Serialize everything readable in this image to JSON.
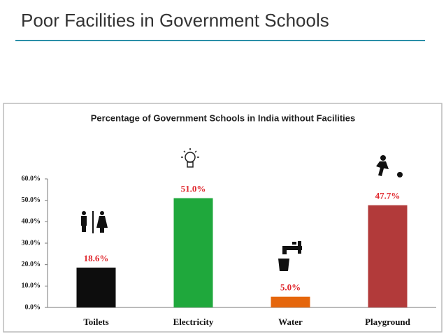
{
  "header": {
    "title": "Poor Facilities in Government Schools"
  },
  "chart_data": {
    "type": "bar",
    "title": "Percentage of Government Schools in India without Facilities",
    "categories": [
      "Toilets",
      "Electricity",
      "Water",
      "Playground"
    ],
    "values": [
      18.6,
      51.0,
      5.0,
      47.7
    ],
    "value_labels": [
      "18.6%",
      "51.0%",
      "5.0%",
      "47.7%"
    ],
    "colors": [
      "#0d0d0d",
      "#1fa83c",
      "#e5660c",
      "#b23a3a"
    ],
    "ylim": [
      0,
      60
    ],
    "yticks": [
      {
        "value": 0,
        "label": "0.0%"
      },
      {
        "value": 10,
        "label": "10.0%"
      },
      {
        "value": 20,
        "label": "20.0%"
      },
      {
        "value": 30,
        "label": "30.0%"
      },
      {
        "value": 40,
        "label": "40.0%"
      },
      {
        "value": 50,
        "label": "50.0%"
      },
      {
        "value": 60,
        "label": "60.0%"
      }
    ],
    "grid": false
  }
}
